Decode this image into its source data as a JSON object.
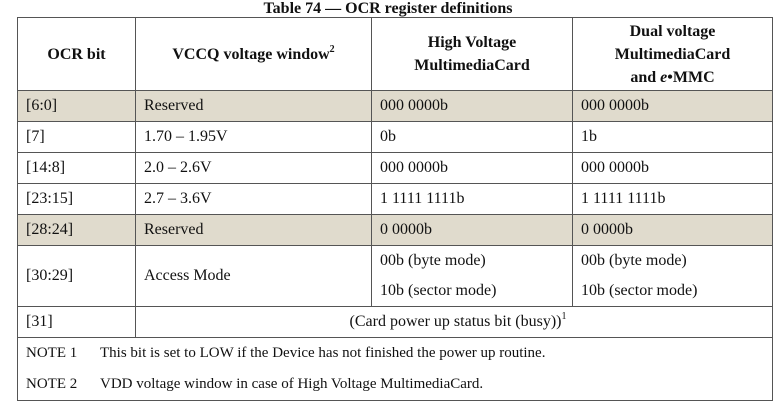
{
  "title": "Table 74 — OCR register definitions",
  "header": {
    "col1": "OCR bit",
    "col2": "VCCQ voltage window",
    "col2_sup": "2",
    "col3_line1": "High Voltage",
    "col3_line2": "MultimediaCard",
    "col4_line1": "Dual voltage",
    "col4_line2": "MultimediaCard",
    "col4_line3_pre": "and ",
    "col4_line3_e": "e",
    "col4_line3_post": "•MMC"
  },
  "rows": [
    {
      "bit": "[6:0]",
      "window": "Reserved",
      "hv": "000 0000b",
      "dual": "000 0000b"
    },
    {
      "bit": "[7]",
      "window": "1.70 – 1.95V",
      "hv": "0b",
      "dual": "1b"
    },
    {
      "bit": "[14:8]",
      "window": "2.0 – 2.6V",
      "hv": "000 0000b",
      "dual": "000 0000b"
    },
    {
      "bit": "[23:15]",
      "window": "2.7 – 3.6V",
      "hv": "1 1111 1111b",
      "dual": "1 1111 1111b"
    },
    {
      "bit": "[28:24]",
      "window": "Reserved",
      "hv": "0 0000b",
      "dual": "0 0000b"
    }
  ],
  "access_row": {
    "bit": "[30:29]",
    "window": "Access Mode",
    "hv_1": "00b (byte mode)",
    "hv_2": "10b (sector mode)",
    "dual_1": "00b (byte mode)",
    "dual_2": "10b (sector mode)"
  },
  "busy_row": {
    "bit": "[31]",
    "text": "(Card power up status bit (busy))",
    "sup": "1"
  },
  "notes": [
    {
      "label": "NOTE 1",
      "text": "This bit is set to LOW if the Device has not finished the power up routine."
    },
    {
      "label": "NOTE 2",
      "text": "VDD voltage window in case of High Voltage MultimediaCard."
    }
  ],
  "colors": {
    "reserved_row_bg": "#e0dbcd",
    "border": "#555555"
  }
}
